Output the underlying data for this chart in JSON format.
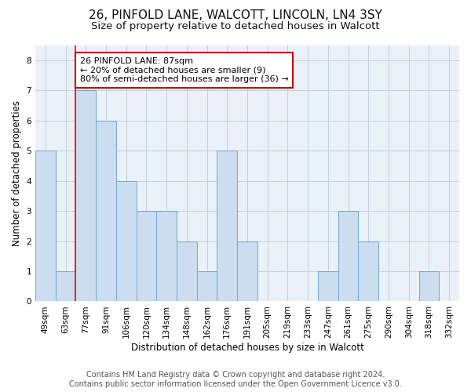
{
  "title": "26, PINFOLD LANE, WALCOTT, LINCOLN, LN4 3SY",
  "subtitle": "Size of property relative to detached houses in Walcott",
  "xlabel": "Distribution of detached houses by size in Walcott",
  "ylabel": "Number of detached properties",
  "categories": [
    "49sqm",
    "63sqm",
    "77sqm",
    "91sqm",
    "106sqm",
    "120sqm",
    "134sqm",
    "148sqm",
    "162sqm",
    "176sqm",
    "191sqm",
    "205sqm",
    "219sqm",
    "233sqm",
    "247sqm",
    "261sqm",
    "275sqm",
    "290sqm",
    "304sqm",
    "318sqm",
    "332sqm"
  ],
  "values": [
    5,
    1,
    7,
    6,
    4,
    3,
    3,
    2,
    1,
    5,
    2,
    0,
    0,
    0,
    1,
    3,
    2,
    0,
    0,
    1,
    0
  ],
  "bar_color": "#ccddf0",
  "bar_edge_color": "#6aaad4",
  "annotation_text": "26 PINFOLD LANE: 87sqm\n← 20% of detached houses are smaller (9)\n80% of semi-detached houses are larger (36) →",
  "annotation_box_color": "#ffffff",
  "annotation_box_edge_color": "#cc0000",
  "background_color": "#ffffff",
  "plot_bg_color": "#eaf1f8",
  "grid_color": "#c0d0e0",
  "footer_line1": "Contains HM Land Registry data © Crown copyright and database right 2024.",
  "footer_line2": "Contains public sector information licensed under the Open Government Licence v3.0.",
  "ylim": [
    0,
    8.5
  ],
  "title_fontsize": 11,
  "subtitle_fontsize": 9.5,
  "axis_label_fontsize": 8.5,
  "tick_fontsize": 7.5,
  "annotation_fontsize": 8,
  "footer_fontsize": 7
}
